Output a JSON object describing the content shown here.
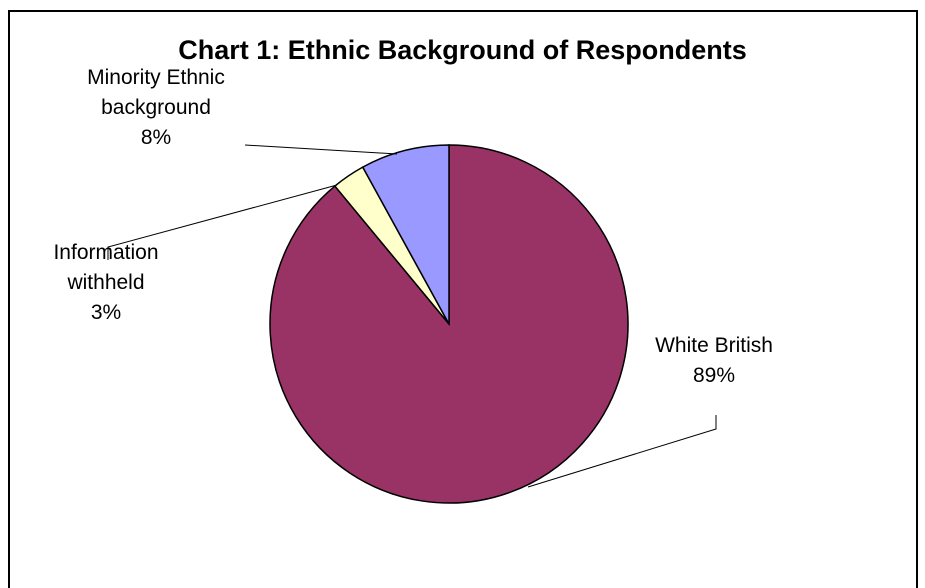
{
  "chart_data": {
    "type": "pie",
    "title": "Chart 1: Ethnic Background of Respondents",
    "slices": [
      {
        "label_lines": [
          "White British",
          "89%"
        ],
        "value": 89,
        "color": "#993366"
      },
      {
        "label_lines": [
          "Information",
          "withheld",
          "3%"
        ],
        "value": 3,
        "color": "#FFFFCC"
      },
      {
        "label_lines": [
          "Minority Ethnic",
          "background",
          "8%"
        ],
        "value": 8,
        "color": "#9999FF"
      }
    ],
    "start_angle_deg": 0,
    "direction": "clockwise",
    "legend": "none"
  }
}
